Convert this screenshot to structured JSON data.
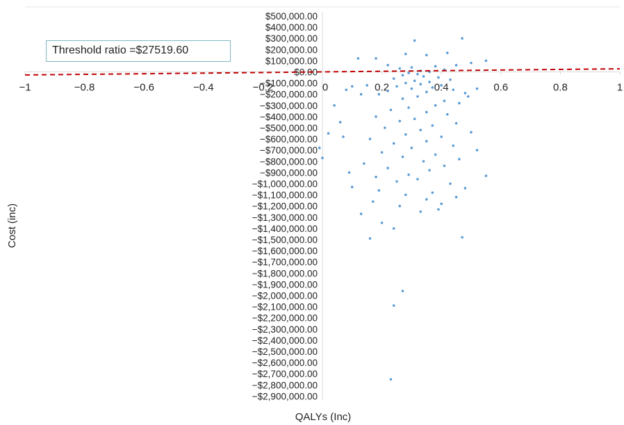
{
  "chart_data": {
    "type": "scatter",
    "xlabel": "QALYs (Inc)",
    "ylabel": "Cost (inc)",
    "xlim": [
      -1,
      1
    ],
    "ylim": [
      -2900000,
      500000
    ],
    "x_ticks": [
      -1,
      -0.8,
      -0.6,
      -0.4,
      -0.2,
      0,
      0.2,
      0.4,
      0.6,
      0.8,
      1
    ],
    "x_tick_labels": [
      "−1",
      "−0.8",
      "−0.6",
      "−0.4",
      "−0.2",
      "0",
      "0.2",
      "0.4",
      "0.6",
      "0.8",
      "1"
    ],
    "y_ticks": [
      500000,
      400000,
      300000,
      200000,
      100000,
      0,
      -100000,
      -200000,
      -300000,
      -400000,
      -500000,
      -600000,
      -700000,
      -800000,
      -900000,
      -1000000,
      -1100000,
      -1200000,
      -1300000,
      -1400000,
      -1500000,
      -1600000,
      -1700000,
      -1800000,
      -1900000,
      -2000000,
      -2100000,
      -2200000,
      -2300000,
      -2400000,
      -2500000,
      -2600000,
      -2700000,
      -2800000,
      -2900000
    ],
    "y_tick_labels": [
      "$500,000.00",
      "$400,000.00",
      "$300,000.00",
      "$200,000.00",
      "$100,000.00",
      "$0.00",
      "−$100,000.00",
      "−$200,000.00",
      "−$300,000.00",
      "−$400,000.00",
      "−$500,000.00",
      "−$600,000.00",
      "−$700,000.00",
      "−$800,000.00",
      "−$900,000.00",
      "−$1,000,000.00",
      "−$1,100,000.00",
      "−$1,200,000.00",
      "−$1,300,000.00",
      "−$1,400,000.00",
      "−$1,500,000.00",
      "−$1,600,000.00",
      "−$1,700,000.00",
      "−$1,800,000.00",
      "−$1,900,000.00",
      "−$2,000,000.00",
      "−$2,100,000.00",
      "−$2,200,000.00",
      "−$2,300,000.00",
      "−$2,400,000.00",
      "−$2,500,000.00",
      "−$2,600,000.00",
      "−$2,700,000.00",
      "−$2,800,000.00",
      "−$2,900,000.00"
    ],
    "threshold_line": {
      "slope": 27519.6,
      "style": "dashed"
    },
    "annotation": "Threshold ratio =$27519.60",
    "grid": false,
    "legend": "none",
    "colors": {
      "points": "#5b9bd5",
      "threshold": "#c00000",
      "axes": "#d9d9d9",
      "annotation_border": "#7fb7c4"
    },
    "points": [
      [
        0.31,
        280000
      ],
      [
        0.47,
        300000
      ],
      [
        0.42,
        170000
      ],
      [
        0.35,
        150000
      ],
      [
        0.28,
        160000
      ],
      [
        0.12,
        120000
      ],
      [
        0.18,
        120000
      ],
      [
        0.55,
        100000
      ],
      [
        0.5,
        80000
      ],
      [
        0.45,
        60000
      ],
      [
        0.22,
        60000
      ],
      [
        0.38,
        50000
      ],
      [
        0.3,
        40000
      ],
      [
        0.26,
        30000
      ],
      [
        0.41,
        20000
      ],
      [
        0.33,
        10000
      ],
      [
        0.36,
        0
      ],
      [
        0.29,
        -10000
      ],
      [
        0.32,
        -20000
      ],
      [
        0.27,
        -30000
      ],
      [
        0.34,
        -40000
      ],
      [
        0.39,
        -50000
      ],
      [
        0.24,
        -60000
      ],
      [
        0.43,
        -70000
      ],
      [
        0.31,
        -80000
      ],
      [
        0.36,
        -90000
      ],
      [
        0.28,
        -100000
      ],
      [
        0.33,
        -110000
      ],
      [
        0.4,
        -120000
      ],
      [
        0.25,
        -130000
      ],
      [
        0.37,
        -140000
      ],
      [
        0.3,
        -150000
      ],
      [
        0.44,
        -160000
      ],
      [
        0.22,
        -170000
      ],
      [
        0.35,
        -180000
      ],
      [
        0.48,
        -190000
      ],
      [
        0.19,
        -200000
      ],
      [
        0.32,
        -220000
      ],
      [
        0.27,
        -240000
      ],
      [
        0.41,
        -260000
      ],
      [
        0.15,
        -120000
      ],
      [
        0.1,
        -130000
      ],
      [
        0.08,
        -160000
      ],
      [
        0.13,
        -200000
      ],
      [
        0.52,
        -150000
      ],
      [
        0.49,
        -220000
      ],
      [
        0.46,
        -280000
      ],
      [
        0.38,
        -300000
      ],
      [
        0.29,
        -320000
      ],
      [
        0.23,
        -340000
      ],
      [
        0.35,
        -360000
      ],
      [
        0.42,
        -380000
      ],
      [
        0.18,
        -400000
      ],
      [
        0.31,
        -420000
      ],
      [
        0.26,
        -440000
      ],
      [
        0.45,
        -460000
      ],
      [
        0.37,
        -480000
      ],
      [
        0.21,
        -500000
      ],
      [
        0.33,
        -520000
      ],
      [
        0.5,
        -540000
      ],
      [
        0.28,
        -560000
      ],
      [
        0.4,
        -580000
      ],
      [
        0.16,
        -600000
      ],
      [
        0.35,
        -620000
      ],
      [
        0.24,
        -640000
      ],
      [
        0.44,
        -660000
      ],
      [
        0.3,
        -680000
      ],
      [
        0.52,
        -700000
      ],
      [
        0.2,
        -720000
      ],
      [
        0.38,
        -740000
      ],
      [
        0.27,
        -760000
      ],
      [
        0.46,
        -780000
      ],
      [
        0.34,
        -800000
      ],
      [
        0.14,
        -820000
      ],
      [
        0.41,
        -840000
      ],
      [
        0.22,
        -860000
      ],
      [
        0.36,
        -880000
      ],
      [
        0.09,
        -900000
      ],
      [
        0.29,
        -920000
      ],
      [
        0.55,
        -930000
      ],
      [
        0.18,
        -940000
      ],
      [
        0.32,
        -960000
      ],
      [
        0.25,
        -980000
      ],
      [
        0.43,
        -1000000
      ],
      [
        0.1,
        -1030000
      ],
      [
        0.48,
        -1040000
      ],
      [
        0.19,
        -1060000
      ],
      [
        0.37,
        -1080000
      ],
      [
        0.28,
        -1100000
      ],
      [
        0.45,
        -1120000
      ],
      [
        0.35,
        -1140000
      ],
      [
        0.17,
        -1160000
      ],
      [
        0.4,
        -1180000
      ],
      [
        0.26,
        -1200000
      ],
      [
        0.39,
        -1230000
      ],
      [
        0.13,
        -1270000
      ],
      [
        0.33,
        -1250000
      ],
      [
        0.2,
        -1350000
      ],
      [
        0.24,
        -1400000
      ],
      [
        0.16,
        -1490000
      ],
      [
        0.47,
        -1480000
      ],
      [
        0.27,
        -1960000
      ],
      [
        0.24,
        -2090000
      ],
      [
        0.23,
        -2750000
      ],
      [
        -0.01,
        -680000
      ],
      [
        0.0,
        -770000
      ],
      [
        0.02,
        -550000
      ],
      [
        0.04,
        -300000
      ],
      [
        0.06,
        -450000
      ],
      [
        0.07,
        -580000
      ]
    ]
  }
}
